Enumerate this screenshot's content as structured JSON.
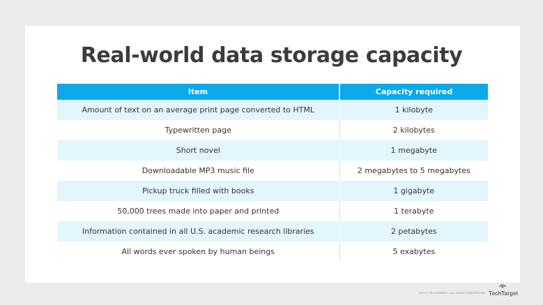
{
  "title": "Real-world data storage capacity",
  "table": {
    "headers": [
      "Item",
      "Capacity required"
    ],
    "rows": [
      [
        "Amount of text on an average print page converted to HTML",
        "1 kilobyte"
      ],
      [
        "Typewritten page",
        "2 kilobytes"
      ],
      [
        "Short novel",
        "1 megabyte"
      ],
      [
        "Downloadable MP3 music file",
        "2 megabytes to 5 megabytes"
      ],
      [
        "Pickup truck filled with books",
        "1 gigabyte"
      ],
      [
        "50,000 trees made into paper and printed",
        "1 terabyte"
      ],
      [
        "Information contained in all U.S. academic research libraries",
        "2 petabytes"
      ],
      [
        "All words ever spoken by human beings",
        "5 exabytes"
      ]
    ]
  },
  "footer": {
    "copyright": "©2017 TechTarget. All rights reserved.",
    "logo": "TechTarget",
    "logo_icon": "techtarget-eye-icon"
  },
  "colors": {
    "header_bg": "#0ba9e9",
    "stripe_bg": "#e3f5fd",
    "title_text": "#3c3c3c"
  }
}
